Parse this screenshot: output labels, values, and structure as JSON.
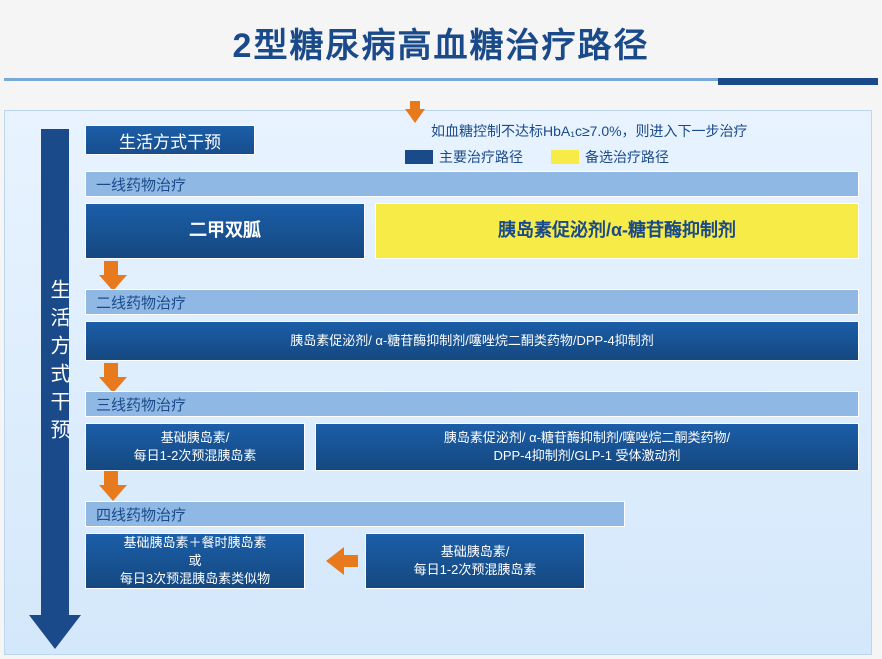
{
  "title": "2型糖尿病高血糖治疗路径",
  "colors": {
    "primary_blue": "#1a4a8a",
    "box_blue_top": "#1b5ea8",
    "box_blue_bottom": "#154880",
    "header_blue": "#8fb9e4",
    "alt_yellow": "#f7ec47",
    "arrow_orange": "#e87a1e",
    "bg_top": "#e8f3ff",
    "bg_bottom": "#d4e8fb"
  },
  "legend": {
    "progression_text": "如血糖控制不达标HbA₁c≥7.0%，则进入下一步治疗",
    "primary_label": "主要治疗路径",
    "alt_label": "备选治疗路径"
  },
  "vertical_arrow_label": "生活方式干预",
  "lifestyle_box": "生活方式干预",
  "tiers": [
    {
      "header": "一线药物治疗",
      "boxes": [
        {
          "lines": [
            "二甲双胍"
          ],
          "style": "primary_big"
        },
        {
          "lines": [
            "胰岛素促泌剂/α-糖苷酶抑制剂"
          ],
          "style": "alt_big"
        }
      ]
    },
    {
      "header": "二线药物治疗",
      "boxes": [
        {
          "lines": [
            "胰岛素促泌剂/ α-糖苷酶抑制剂/噻唑烷二酮类药物/DPP-4抑制剂"
          ],
          "style": "primary"
        }
      ]
    },
    {
      "header": "三线药物治疗",
      "boxes": [
        {
          "lines": [
            "基础胰岛素/",
            "每日1-2次预混胰岛素"
          ],
          "style": "primary"
        },
        {
          "lines": [
            "胰岛素促泌剂/ α-糖苷酶抑制剂/噻唑烷二酮类药物/",
            "DPP-4抑制剂/GLP-1 受体激动剂"
          ],
          "style": "primary"
        }
      ]
    },
    {
      "header": "四线药物治疗",
      "boxes": [
        {
          "lines": [
            "基础胰岛素＋餐时胰岛素",
            "或",
            "每日3次预混胰岛素类似物"
          ],
          "style": "primary"
        },
        {
          "lines": [
            "基础胰岛素/",
            "每日1-2次预混胰岛素"
          ],
          "style": "primary"
        }
      ]
    }
  ]
}
